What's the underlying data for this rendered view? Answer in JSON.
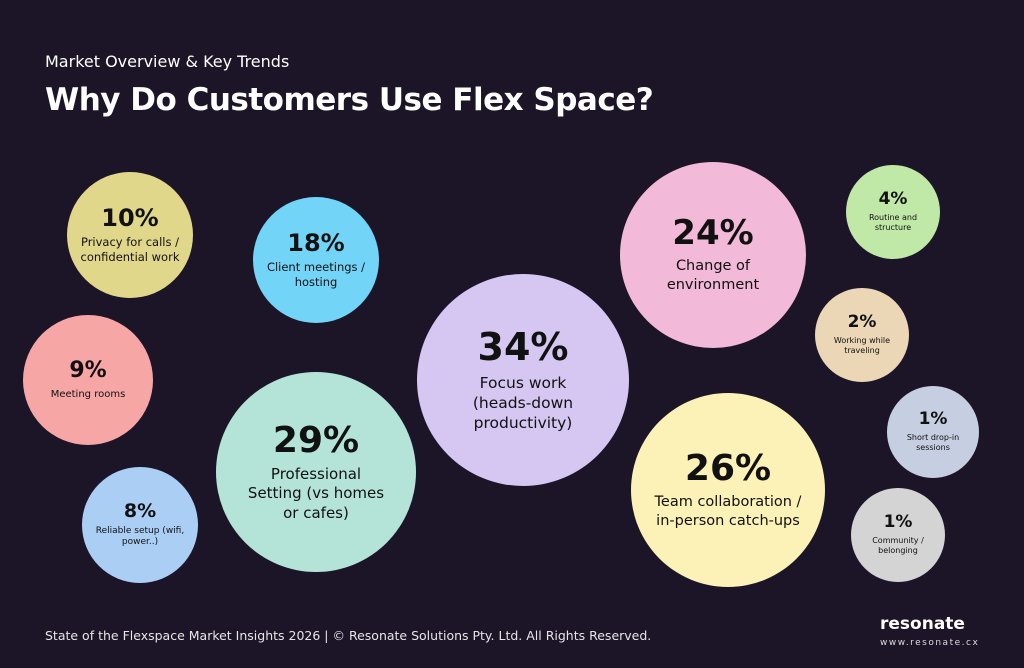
{
  "chart_data": {
    "type": "bubble",
    "subtitle": "Market Overview & Key Trends",
    "title": "Why Do Customers Use Flex Space?",
    "categories": [
      "Privacy for calls / confidential work",
      "Client meetings / hosting",
      "Meeting rooms",
      "Reliable setup (wifi, power..)",
      "Professional Setting (vs homes or cafes)",
      "Focus work (heads-down productivity)",
      "Change of environment",
      "Team collaboration / in-person catch-ups",
      "Routine and structure",
      "Working while traveling",
      "Short drop-in sessions",
      "Community / belonging"
    ],
    "values": [
      10,
      18,
      9,
      8,
      29,
      34,
      24,
      26,
      4,
      2,
      1,
      1
    ],
    "value_labels": [
      "10%",
      "18%",
      "9%",
      "8%",
      "29%",
      "34%",
      "24%",
      "26%",
      "4%",
      "2%",
      "1%",
      "1%"
    ],
    "colors": [
      "#e0d78b",
      "#72d4f7",
      "#f7a6a6",
      "#abcef5",
      "#b4e4d7",
      "#d5c7f1",
      "#f2b9d9",
      "#fcf1b6",
      "#c0e8a7",
      "#ebd7b6",
      "#c6cee1",
      "#d4d4d4"
    ],
    "footer": "State of the Flexspace Market Insights 2026 | © Resonate Solutions Pty. Ltd. All Rights Reserved.",
    "logo": "resonate",
    "url": "www.resonate.cx"
  }
}
